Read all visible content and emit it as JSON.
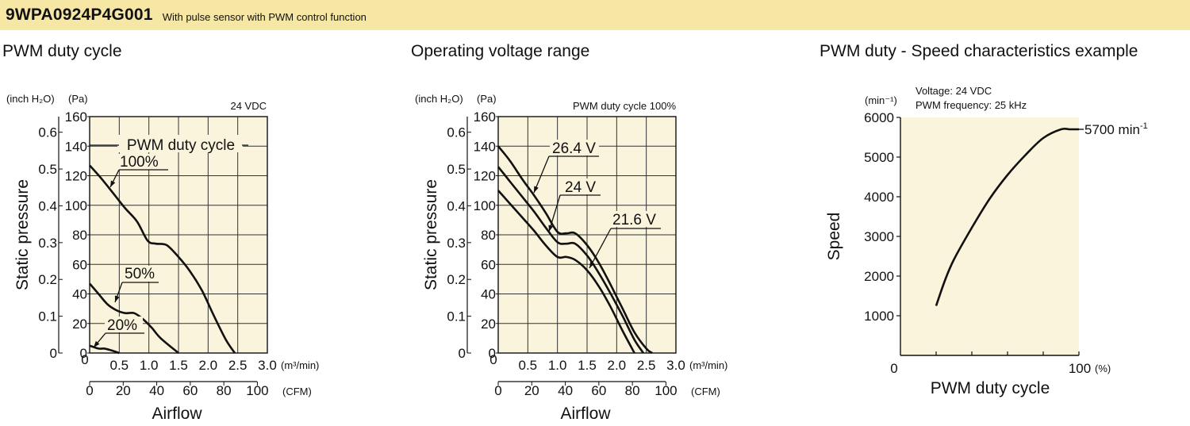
{
  "header": {
    "model": "9WPA0924P4G001",
    "subtitle": "With pulse sensor with PWM control function"
  },
  "chart_data": [
    {
      "type": "line",
      "title": "PWM duty cycle",
      "annotation": "24 VDC",
      "legend_title": "PWM duty cycle",
      "ylabel": "Static pressure",
      "xlabel": "Airflow",
      "y_unit_left": "(inch H₂O)",
      "y_unit_right": "(Pa)",
      "x_unit_top": "(m³/min)",
      "x_unit_bottom": "(CFM)",
      "ylim_pa": [
        0,
        160
      ],
      "xlim_m3min": [
        0,
        3.0
      ],
      "y_ticks_pa": [
        "0",
        "20",
        "40",
        "60",
        "80",
        "100",
        "120",
        "140",
        "160"
      ],
      "y_ticks_inch": [
        "0",
        "0.1",
        "0.2",
        "0.3",
        "0.4",
        "0.5",
        "0.6"
      ],
      "x_ticks_m3min": [
        "0",
        "0.5",
        "1.0",
        "1.5",
        "2.0",
        "2.5",
        "3.0"
      ],
      "x_ticks_cfm": [
        "0",
        "20",
        "40",
        "60",
        "80",
        "100"
      ],
      "series": [
        {
          "name": "100%",
          "x": [
            0,
            0.2,
            0.4,
            0.6,
            0.8,
            0.98,
            1.12,
            1.3,
            1.5,
            1.7,
            1.9,
            2.1,
            2.3,
            2.45
          ],
          "y": [
            127,
            118,
            108,
            98,
            89,
            76,
            74,
            73,
            65,
            55,
            42,
            25,
            9,
            0
          ]
        },
        {
          "name": "50%",
          "x": [
            0,
            0.15,
            0.3,
            0.45,
            0.6,
            0.75,
            0.9,
            1.05,
            1.2,
            1.5
          ],
          "y": [
            47,
            40,
            33,
            29,
            27,
            27,
            23,
            17,
            10,
            0
          ]
        },
        {
          "name": "20%",
          "x": [
            0,
            0.15,
            0.25,
            0.35,
            0.5
          ],
          "y": [
            5,
            3,
            3,
            2,
            0
          ]
        }
      ]
    },
    {
      "type": "line",
      "title": "Operating voltage range",
      "annotation": "PWM duty cycle 100%",
      "ylabel": "Static pressure",
      "xlabel": "Airflow",
      "y_unit_left": "(inch H₂O)",
      "y_unit_right": "(Pa)",
      "x_unit_top": "(m³/min)",
      "x_unit_bottom": "(CFM)",
      "ylim_pa": [
        0,
        160
      ],
      "xlim_m3min": [
        0,
        3.0
      ],
      "y_ticks_pa": [
        "0",
        "20",
        "40",
        "60",
        "80",
        "100",
        "120",
        "140",
        "160"
      ],
      "y_ticks_inch": [
        "0",
        "0.1",
        "0.2",
        "0.3",
        "0.4",
        "0.5",
        "0.6"
      ],
      "x_ticks_m3min": [
        "0",
        "0.5",
        "1.0",
        "1.5",
        "2.0",
        "2.5",
        "3.0"
      ],
      "x_ticks_cfm": [
        "0",
        "20",
        "40",
        "60",
        "80",
        "100"
      ],
      "series": [
        {
          "name": "26.4 V",
          "x": [
            0,
            0.2,
            0.4,
            0.6,
            0.8,
            1.0,
            1.15,
            1.3,
            1.5,
            1.7,
            1.9,
            2.1,
            2.3,
            2.5,
            2.6
          ],
          "y": [
            140,
            130,
            118,
            107,
            95,
            82,
            81,
            81,
            73,
            61,
            46,
            30,
            14,
            3,
            0
          ]
        },
        {
          "name": "24 V",
          "x": [
            0,
            0.2,
            0.4,
            0.6,
            0.8,
            1.0,
            1.15,
            1.3,
            1.5,
            1.7,
            1.9,
            2.1,
            2.3,
            2.45
          ],
          "y": [
            126,
            116,
            106,
            96,
            85,
            75,
            74,
            74,
            66,
            54,
            40,
            25,
            9,
            0
          ]
        },
        {
          "name": "21.6 V",
          "x": [
            0,
            0.2,
            0.4,
            0.6,
            0.8,
            1.0,
            1.15,
            1.3,
            1.5,
            1.7,
            1.9,
            2.1,
            2.3
          ],
          "y": [
            110,
            101,
            92,
            83,
            73,
            65,
            65,
            63,
            56,
            45,
            31,
            15,
            0
          ]
        }
      ]
    },
    {
      "type": "line",
      "title": "PWM duty - Speed characteristics example",
      "annotations": [
        "Voltage: 24 VDC",
        "PWM frequency: 25 kHz"
      ],
      "ylabel": "Speed",
      "xlabel": "PWM duty cycle",
      "y_unit": "(min⁻¹)",
      "x_unit": "(%)",
      "ylim": [
        0,
        6000
      ],
      "xlim": [
        0,
        100
      ],
      "y_ticks": [
        "1000",
        "2000",
        "3000",
        "4000",
        "5000",
        "6000"
      ],
      "x_ticks": [
        "0",
        "100"
      ],
      "max_label": "5700 min",
      "max_label_sup": "-1",
      "series": [
        {
          "name": "",
          "x": [
            20,
            25,
            30,
            40,
            50,
            60,
            70,
            80,
            90,
            95,
            100
          ],
          "y": [
            1250,
            1900,
            2420,
            3220,
            3950,
            4550,
            5050,
            5480,
            5700,
            5700,
            5700
          ]
        }
      ]
    }
  ]
}
